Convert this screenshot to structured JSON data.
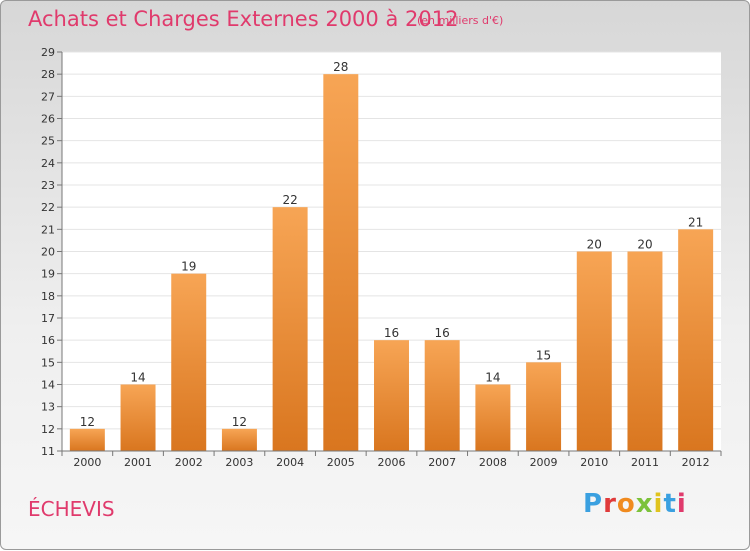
{
  "header": {
    "title": "Achats et Charges Externes 2000 à 2012",
    "subtitle": "(en milliers d'€)"
  },
  "footer": {
    "commune": "ÉCHEVIS",
    "logo_text": "Proxiti"
  },
  "colors": {
    "title": "#e03a6c",
    "bar_top": "#f7a555",
    "bar_bottom": "#d9761f",
    "logo_letters": [
      "#3aa0e0",
      "#e03a3a",
      "#f08a1e",
      "#7cc23a",
      "#e0c31e",
      "#3aa0e0",
      "#e03a6c"
    ]
  },
  "chart_data": {
    "type": "bar",
    "title": "Achats et Charges Externes 2000 à 2012",
    "subtitle": "(en milliers d'€)",
    "categories": [
      "2000",
      "2001",
      "2002",
      "2003",
      "2004",
      "2005",
      "2006",
      "2007",
      "2008",
      "2009",
      "2010",
      "2011",
      "2012"
    ],
    "values": [
      12,
      14,
      19,
      12,
      22,
      28,
      16,
      16,
      14,
      15,
      20,
      20,
      21
    ],
    "ylim": [
      11,
      29
    ],
    "yticks": [
      11,
      12,
      13,
      14,
      15,
      16,
      17,
      18,
      19,
      20,
      21,
      22,
      23,
      24,
      25,
      26,
      27,
      28,
      29
    ],
    "grid": true,
    "xlabel": "",
    "ylabel": ""
  }
}
